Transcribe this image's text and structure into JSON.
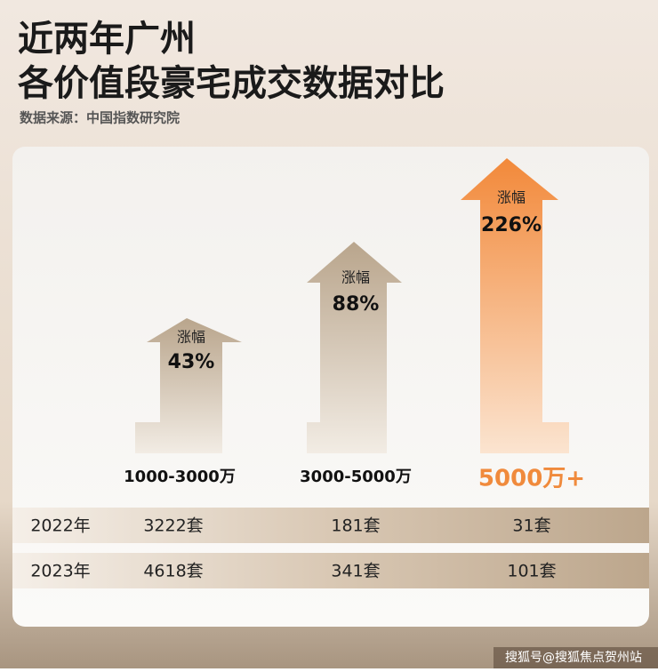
{
  "header": {
    "title_lines": [
      "近两年广州",
      "各价值段豪宅成交数据对比"
    ],
    "source": "数据来源：中国指数研究院"
  },
  "arrows": [
    {
      "label": "涨幅",
      "value": "43%",
      "category": "1000-3000万"
    },
    {
      "label": "涨幅",
      "value": "88%",
      "category": "3000-5000万"
    },
    {
      "label": "涨幅",
      "value": "226%",
      "category": "5000万+"
    }
  ],
  "table": {
    "rows": [
      [
        "2022年",
        "3222套",
        "181套",
        "31套"
      ],
      [
        "2023年",
        "4618套",
        "341套",
        "101套"
      ]
    ]
  },
  "watermark": "搜狐号@搜狐焦点贺州站"
}
